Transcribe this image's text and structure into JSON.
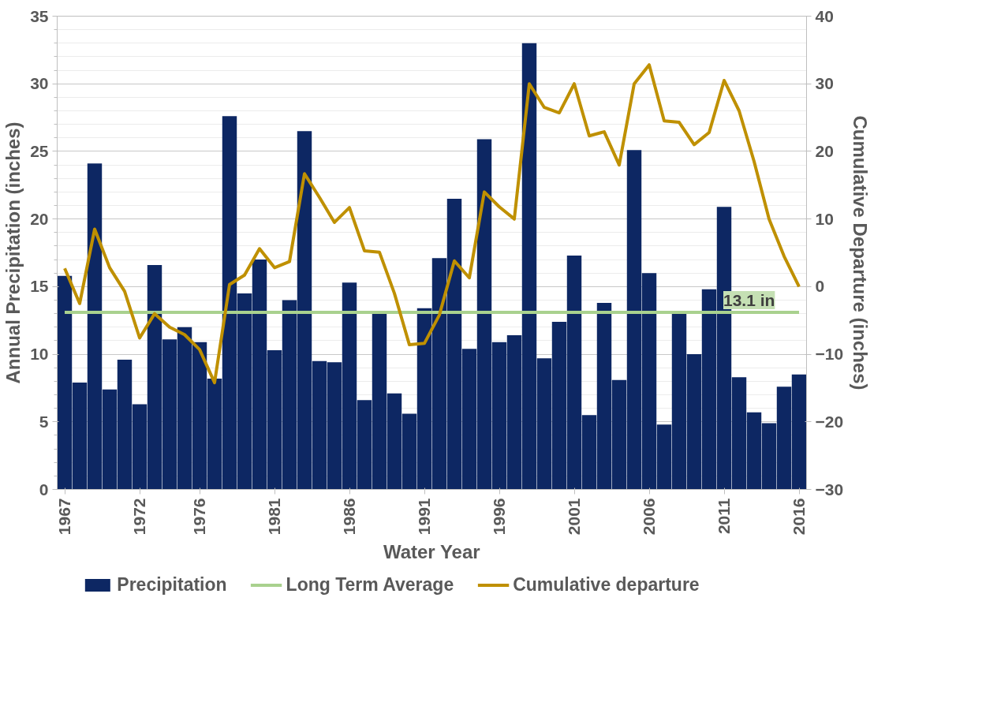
{
  "chart_data": {
    "type": "bar",
    "xlabel": "Water Year",
    "ylabel": "Annual Precipitation (inches)",
    "y2label": "Cumulative Departure (inches)",
    "x": [
      1967,
      1968,
      1969,
      1970,
      1971,
      1972,
      1973,
      1974,
      1975,
      1976,
      1977,
      1978,
      1979,
      1980,
      1981,
      1982,
      1983,
      1984,
      1985,
      1986,
      1987,
      1988,
      1989,
      1990,
      1991,
      1992,
      1993,
      1994,
      1995,
      1996,
      1997,
      1998,
      1999,
      2000,
      2001,
      2002,
      2003,
      2004,
      2005,
      2006,
      2007,
      2008,
      2009,
      2010,
      2011,
      2012,
      2013,
      2014,
      2015,
      2016
    ],
    "series": [
      {
        "name": "Precipitation",
        "type": "bar",
        "color": "#0d2763",
        "values": [
          15.8,
          7.9,
          24.1,
          7.4,
          9.6,
          6.3,
          16.6,
          11.1,
          12.0,
          10.9,
          8.2,
          27.6,
          14.5,
          17.0,
          10.3,
          14.0,
          26.5,
          9.5,
          9.4,
          15.3,
          6.6,
          13.1,
          7.1,
          5.6,
          13.4,
          17.1,
          21.5,
          10.4,
          25.9,
          10.9,
          11.4,
          33.0,
          9.7,
          12.4,
          17.3,
          5.5,
          13.8,
          8.1,
          25.1,
          16.0,
          4.8,
          13.1,
          10.0,
          14.8,
          20.9,
          8.3,
          5.7,
          4.9,
          7.6,
          8.5
        ]
      },
      {
        "name": "Long Term Average",
        "type": "line",
        "color": "#a9d18e",
        "x": [
          1967,
          2016
        ],
        "values": [
          13.1,
          13.1
        ]
      },
      {
        "name": "Cumulative departure",
        "type": "line",
        "axis": "y2",
        "color": "#bf9000",
        "values": [
          2.7,
          -2.5,
          8.5,
          2.8,
          -0.7,
          -7.6,
          -4.0,
          -6.0,
          -7.1,
          -9.3,
          -14.2,
          0.3,
          1.7,
          5.6,
          2.8,
          3.7,
          16.7,
          13.2,
          9.5,
          11.7,
          5.3,
          5.1,
          -1.0,
          -8.6,
          -8.4,
          -4.2,
          3.8,
          1.3,
          14.0,
          11.8,
          10.0,
          30.0,
          26.5,
          25.7,
          30.0,
          22.3,
          22.9,
          18.0,
          30.0,
          32.8,
          24.5,
          24.3,
          21.0,
          22.8,
          30.5,
          26.0,
          18.5,
          10.0,
          4.5,
          0.0
        ]
      }
    ],
    "ylim": [
      0,
      35
    ],
    "yticks": [
      0,
      5,
      10,
      15,
      20,
      25,
      30,
      35
    ],
    "y2lim": [
      -30,
      40
    ],
    "y2ticks": [
      -30,
      -20,
      -10,
      0,
      10,
      20,
      30,
      40
    ],
    "xlim": [
      1966.5,
      2016.5
    ],
    "xticks": [
      1967,
      1972,
      1976,
      1981,
      1986,
      1991,
      1996,
      2001,
      2006,
      2011,
      2016
    ],
    "annotations": [
      {
        "text": "13.1 in",
        "x": 2012,
        "y": 13.1
      }
    ],
    "grid": "y",
    "legend": "bottom"
  }
}
